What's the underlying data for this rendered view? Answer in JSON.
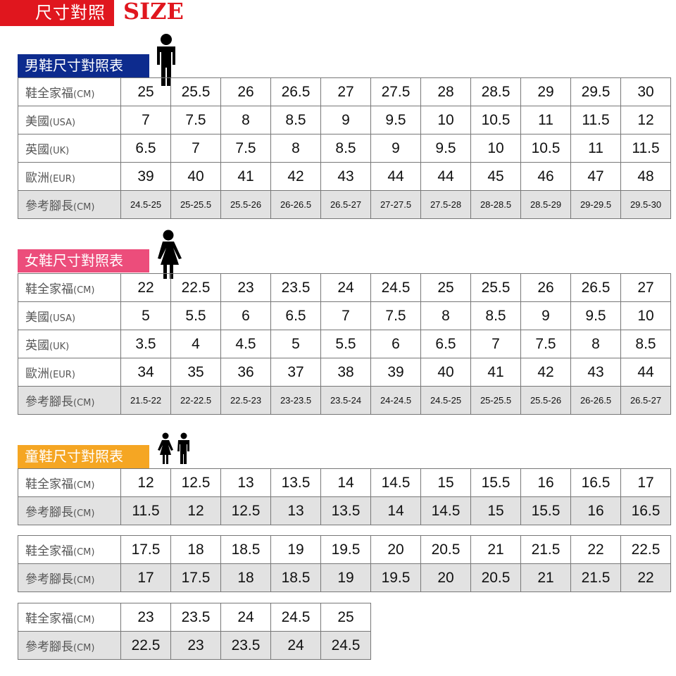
{
  "header": {
    "title": "尺寸對照",
    "size": "SIZE"
  },
  "colors": {
    "red": "#e0161e",
    "men": "#0d2b8e",
    "women": "#ec4d7b",
    "kids": "#f5a623",
    "ref_row": "#e2e2e2"
  },
  "sections": [
    {
      "label": "男鞋尺寸對照表",
      "icon": "man-icon",
      "tables": [
        {
          "rows": [
            {
              "h": "鞋全家福",
              "u": "(CM)",
              "v": [
                "25",
                "25.5",
                "26",
                "26.5",
                "27",
                "27.5",
                "28",
                "28.5",
                "29",
                "29.5",
                "30"
              ]
            },
            {
              "h": "美國",
              "u": "(USA)",
              "v": [
                "7",
                "7.5",
                "8",
                "8.5",
                "9",
                "9.5",
                "10",
                "10.5",
                "11",
                "11.5",
                "12"
              ]
            },
            {
              "h": "英國",
              "u": "(UK)",
              "v": [
                "6.5",
                "7",
                "7.5",
                "8",
                "8.5",
                "9",
                "9.5",
                "10",
                "10.5",
                "11",
                "11.5"
              ]
            },
            {
              "h": "歐洲",
              "u": "(EUR)",
              "v": [
                "39",
                "40",
                "41",
                "42",
                "43",
                "44",
                "44",
                "45",
                "46",
                "47",
                "48"
              ]
            },
            {
              "h": "參考腳長",
              "u": "(CM)",
              "v": [
                "24.5-25",
                "25-25.5",
                "25.5-26",
                "26-26.5",
                "26.5-27",
                "27-27.5",
                "27.5-28",
                "28-28.5",
                "28.5-29",
                "29-29.5",
                "29.5-30"
              ]
            }
          ]
        }
      ]
    },
    {
      "label": "女鞋尺寸對照表",
      "icon": "woman-icon",
      "tables": [
        {
          "rows": [
            {
              "h": "鞋全家福",
              "u": "(CM)",
              "v": [
                "22",
                "22.5",
                "23",
                "23.5",
                "24",
                "24.5",
                "25",
                "25.5",
                "26",
                "26.5",
                "27"
              ]
            },
            {
              "h": "美國",
              "u": "(USA)",
              "v": [
                "5",
                "5.5",
                "6",
                "6.5",
                "7",
                "7.5",
                "8",
                "8.5",
                "9",
                "9.5",
                "10"
              ]
            },
            {
              "h": "英國",
              "u": "(UK)",
              "v": [
                "3.5",
                "4",
                "4.5",
                "5",
                "5.5",
                "6",
                "6.5",
                "7",
                "7.5",
                "8",
                "8.5"
              ]
            },
            {
              "h": "歐洲",
              "u": "(EUR)",
              "v": [
                "34",
                "35",
                "36",
                "37",
                "38",
                "39",
                "40",
                "41",
                "42",
                "43",
                "44"
              ]
            },
            {
              "h": "參考腳長",
              "u": "(CM)",
              "v": [
                "21.5-22",
                "22-22.5",
                "22.5-23",
                "23-23.5",
                "23.5-24",
                "24-24.5",
                "24.5-25",
                "25-25.5",
                "25.5-26",
                "26-26.5",
                "26.5-27"
              ]
            }
          ]
        }
      ]
    },
    {
      "label": "童鞋尺寸對照表",
      "icon": "children-icon",
      "tables": [
        {
          "rows": [
            {
              "h": "鞋全家福",
              "u": "(CM)",
              "v": [
                "12",
                "12.5",
                "13",
                "13.5",
                "14",
                "14.5",
                "15",
                "15.5",
                "16",
                "16.5",
                "17"
              ]
            },
            {
              "h": "參考腳長",
              "u": "(CM)",
              "v": [
                "11.5",
                "12",
                "12.5",
                "13",
                "13.5",
                "14",
                "14.5",
                "15",
                "15.5",
                "16",
                "16.5"
              ]
            }
          ]
        },
        {
          "rows": [
            {
              "h": "鞋全家福",
              "u": "(CM)",
              "v": [
                "17.5",
                "18",
                "18.5",
                "19",
                "19.5",
                "20",
                "20.5",
                "21",
                "21.5",
                "22",
                "22.5"
              ]
            },
            {
              "h": "參考腳長",
              "u": "(CM)",
              "v": [
                "17",
                "17.5",
                "18",
                "18.5",
                "19",
                "19.5",
                "20",
                "20.5",
                "21",
                "21.5",
                "22"
              ]
            }
          ]
        },
        {
          "rows": [
            {
              "h": "鞋全家福",
              "u": "(CM)",
              "v": [
                "23",
                "23.5",
                "24",
                "24.5",
                "25"
              ]
            },
            {
              "h": "參考腳長",
              "u": "(CM)",
              "v": [
                "22.5",
                "23",
                "23.5",
                "24",
                "24.5"
              ]
            }
          ]
        }
      ]
    }
  ]
}
